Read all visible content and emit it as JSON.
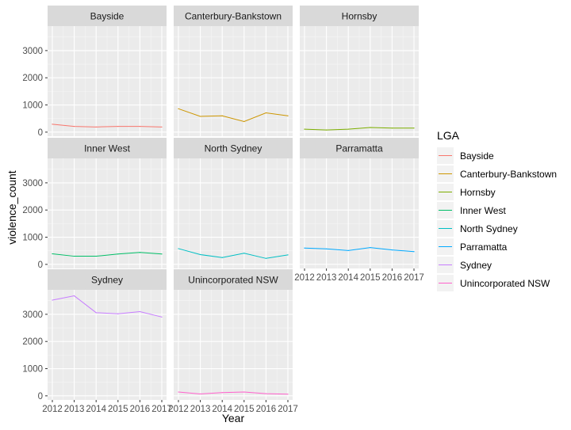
{
  "chart_data": {
    "type": "line",
    "facet": "LGA",
    "x": [
      2012,
      2013,
      2014,
      2015,
      2016,
      2017
    ],
    "x_tick_labels": [
      "2012",
      "2013",
      "2014",
      "2015",
      "2016",
      "2017"
    ],
    "xlabel": "Year",
    "ylabel": "violence_count",
    "ylim": [
      -150,
      3900
    ],
    "y_ticks": [
      0,
      1000,
      2000,
      3000
    ],
    "y_tick_labels": [
      "0",
      "1000",
      "2000",
      "3000"
    ],
    "grid": true,
    "legend": {
      "title": "LGA",
      "position": "right"
    },
    "series": [
      {
        "name": "Bayside",
        "color": "#F8766D",
        "values": [
          290,
          210,
          190,
          210,
          210,
          190
        ]
      },
      {
        "name": "Canterbury-Bankstown",
        "color": "#CD9600",
        "values": [
          860,
          580,
          600,
          390,
          710,
          600
        ]
      },
      {
        "name": "Hornsby",
        "color": "#7CAE00",
        "values": [
          110,
          80,
          110,
          170,
          150,
          150
        ]
      },
      {
        "name": "Inner West",
        "color": "#00BE67",
        "values": [
          390,
          300,
          300,
          380,
          440,
          380
        ]
      },
      {
        "name": "North Sydney",
        "color": "#00BFC4",
        "values": [
          580,
          360,
          250,
          410,
          220,
          350
        ]
      },
      {
        "name": "Parramatta",
        "color": "#00A9FF",
        "values": [
          600,
          570,
          510,
          620,
          530,
          470
        ]
      },
      {
        "name": "Sydney",
        "color": "#C77CFF",
        "values": [
          3520,
          3680,
          3060,
          3020,
          3100,
          2900
        ]
      },
      {
        "name": "Unincorporated NSW",
        "color": "#FF61CC",
        "values": [
          140,
          70,
          120,
          140,
          80,
          60
        ]
      }
    ]
  }
}
